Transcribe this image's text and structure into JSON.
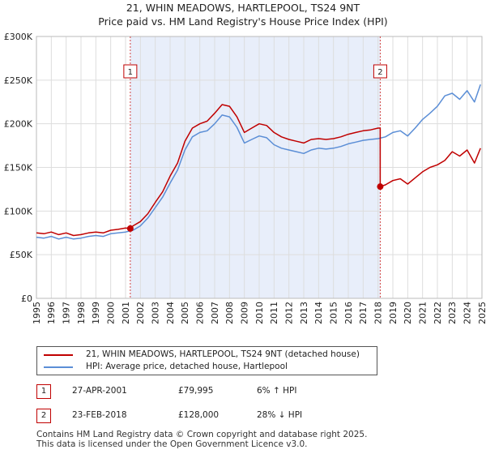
{
  "title_line1": "21, WHIN MEADOWS, HARTLEPOOL, TS24 9NT",
  "title_line2": "Price paid vs. HM Land Registry's House Price Index (HPI)",
  "chart_data": {
    "type": "line",
    "xlabel": "",
    "ylabel": "",
    "xlim": [
      1995,
      2025
    ],
    "ylim": [
      0,
      300000
    ],
    "x_ticks": [
      1995,
      1996,
      1997,
      1998,
      1999,
      2000,
      2001,
      2002,
      2003,
      2004,
      2005,
      2006,
      2007,
      2008,
      2009,
      2010,
      2011,
      2012,
      2013,
      2014,
      2015,
      2016,
      2017,
      2018,
      2019,
      2020,
      2021,
      2022,
      2023,
      2024,
      2025
    ],
    "y_ticks": [
      0,
      50000,
      100000,
      150000,
      200000,
      250000,
      300000
    ],
    "y_tick_labels": [
      "£0",
      "£50K",
      "£100K",
      "£150K",
      "£200K",
      "£250K",
      "£300K"
    ],
    "grid": true,
    "shaded_region": [
      2001.32,
      2018.15
    ],
    "series": [
      {
        "name": "21, WHIN MEADOWS, HARTLEPOOL, TS24 9NT (detached house)",
        "color": "#c00000",
        "x": [
          1995.0,
          1995.5,
          1996.0,
          1996.5,
          1997.0,
          1997.5,
          1998.0,
          1998.5,
          1999.0,
          1999.5,
          2000.0,
          2000.5,
          2001.0,
          2001.32,
          2001.32,
          2001.5,
          2002.0,
          2002.5,
          2003.0,
          2003.5,
          2004.0,
          2004.5,
          2005.0,
          2005.5,
          2006.0,
          2006.5,
          2007.0,
          2007.5,
          2008.0,
          2008.5,
          2009.0,
          2009.5,
          2010.0,
          2010.5,
          2011.0,
          2011.5,
          2012.0,
          2012.5,
          2013.0,
          2013.5,
          2014.0,
          2014.5,
          2015.0,
          2015.5,
          2016.0,
          2016.5,
          2017.0,
          2017.5,
          2018.0,
          2018.15,
          2018.15,
          2018.5,
          2019.0,
          2019.5,
          2020.0,
          2020.5,
          2021.0,
          2021.5,
          2022.0,
          2022.5,
          2023.0,
          2023.5,
          2024.0,
          2024.5,
          2024.9
        ],
        "y": [
          75000,
          74000,
          76000,
          73000,
          75000,
          72000,
          73000,
          75000,
          76000,
          75000,
          78000,
          79000,
          80500,
          79995,
          79995,
          83000,
          88000,
          97000,
          110000,
          122000,
          140000,
          155000,
          180000,
          195000,
          200000,
          203000,
          212000,
          222000,
          220000,
          208000,
          190000,
          195000,
          200000,
          198000,
          190000,
          185000,
          182000,
          180000,
          178000,
          182000,
          183000,
          182000,
          183000,
          185000,
          188000,
          190000,
          192000,
          193000,
          195000,
          195000,
          128000,
          130000,
          135000,
          137000,
          131000,
          138000,
          145000,
          150000,
          153000,
          158000,
          168000,
          163000,
          170000,
          155000,
          172000
        ]
      },
      {
        "name": "HPI: Average price, detached house, Hartlepool",
        "color": "#5b8ed6",
        "x": [
          1995.0,
          1995.5,
          1996.0,
          1996.5,
          1997.0,
          1997.5,
          1998.0,
          1998.5,
          1999.0,
          1999.5,
          2000.0,
          2000.5,
          2001.0,
          2001.5,
          2002.0,
          2002.5,
          2003.0,
          2003.5,
          2004.0,
          2004.5,
          2005.0,
          2005.5,
          2006.0,
          2006.5,
          2007.0,
          2007.5,
          2008.0,
          2008.5,
          2009.0,
          2009.5,
          2010.0,
          2010.5,
          2011.0,
          2011.5,
          2012.0,
          2012.5,
          2013.0,
          2013.5,
          2014.0,
          2014.5,
          2015.0,
          2015.5,
          2016.0,
          2016.5,
          2017.0,
          2017.5,
          2018.0,
          2018.5,
          2019.0,
          2019.5,
          2020.0,
          2020.5,
          2021.0,
          2021.5,
          2022.0,
          2022.5,
          2023.0,
          2023.5,
          2024.0,
          2024.5,
          2024.9
        ],
        "y": [
          70000,
          69000,
          71000,
          68000,
          70000,
          68000,
          69000,
          71000,
          72000,
          71000,
          74000,
          75000,
          76000,
          78000,
          83000,
          92000,
          104000,
          116000,
          132000,
          147000,
          170000,
          185000,
          190000,
          192000,
          200000,
          210000,
          208000,
          196000,
          178000,
          182000,
          186000,
          184000,
          176000,
          172000,
          170000,
          168000,
          166000,
          170000,
          172000,
          171000,
          172000,
          174000,
          177000,
          179000,
          181000,
          182000,
          183000,
          185000,
          190000,
          192000,
          186000,
          195000,
          205000,
          212000,
          220000,
          232000,
          235000,
          228000,
          238000,
          225000,
          245000
        ]
      }
    ],
    "annotations": [
      {
        "label": "1",
        "x": 2001.32
      },
      {
        "label": "2",
        "x": 2018.15
      }
    ]
  },
  "legend": {
    "items": [
      {
        "label": "21, WHIN MEADOWS, HARTLEPOOL, TS24 9NT (detached house)",
        "color": "#c00000"
      },
      {
        "label": "HPI: Average price, detached house, Hartlepool",
        "color": "#5b8ed6"
      }
    ]
  },
  "sales": [
    {
      "num": "1",
      "date": "27-APR-2001",
      "price": "£79,995",
      "relation": "6% ↑ HPI"
    },
    {
      "num": "2",
      "date": "23-FEB-2018",
      "price": "£128,000",
      "relation": "28% ↓ HPI"
    }
  ],
  "footer": {
    "line1": "Contains HM Land Registry data © Crown copyright and database right 2025.",
    "line2": "This data is licensed under the Open Government Licence v3.0."
  }
}
